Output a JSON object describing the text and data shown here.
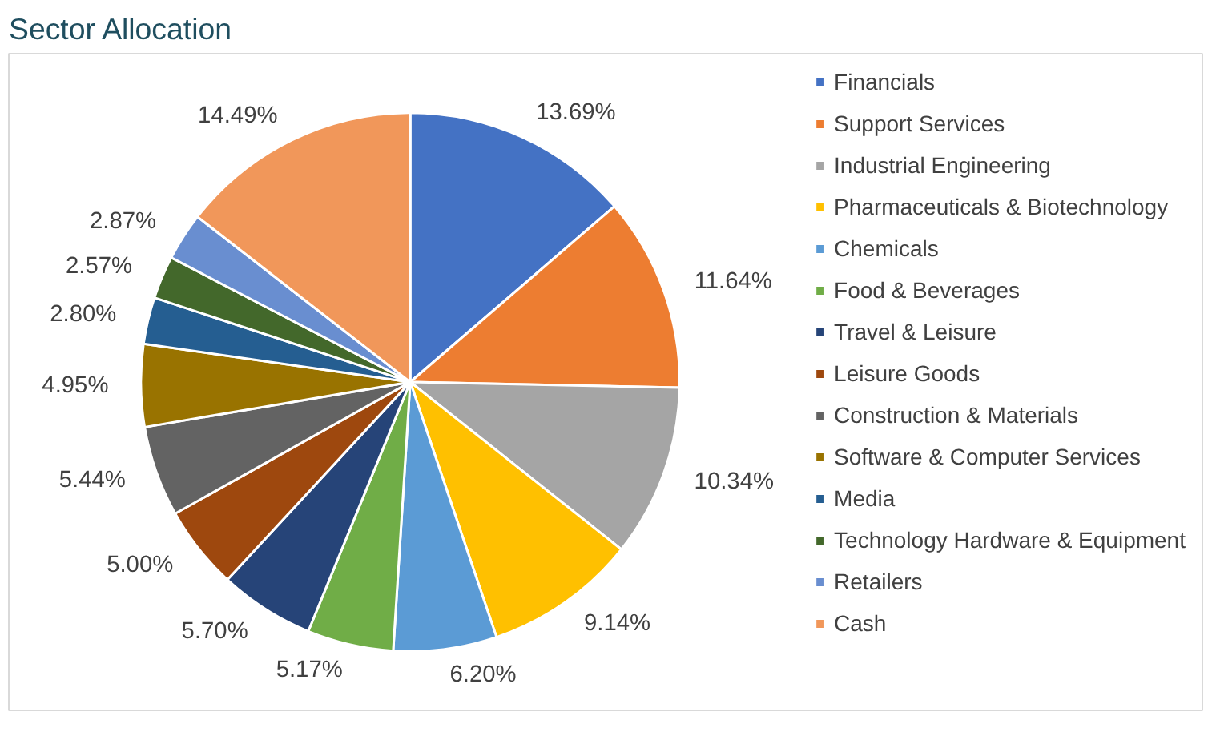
{
  "chart_data": {
    "type": "pie",
    "title": "Sector Allocation",
    "categories": [
      "Financials",
      "Support Services",
      "Industrial Engineering",
      "Pharmaceuticals & Biotechnology",
      "Chemicals",
      "Food & Beverages",
      "Travel & Leisure",
      "Leisure Goods",
      "Construction & Materials",
      "Software & Computer Services",
      "Media",
      "Technology Hardware & Equipment",
      "Retailers",
      "Cash"
    ],
    "values": [
      13.69,
      11.64,
      10.34,
      9.14,
      6.2,
      5.17,
      5.7,
      5.0,
      5.44,
      4.95,
      2.8,
      2.57,
      2.87,
      14.49
    ],
    "value_labels": [
      "13.69%",
      "11.64%",
      "10.34%",
      "9.14%",
      "6.20%",
      "5.17%",
      "5.70%",
      "5.00%",
      "5.44%",
      "4.95%",
      "2.80%",
      "2.57%",
      "2.87%",
      "14.49%"
    ],
    "colors": [
      "#4472c4",
      "#ed7d31",
      "#a5a5a5",
      "#ffc000",
      "#5b9bd5",
      "#70ad47",
      "#264478",
      "#9e480e",
      "#636363",
      "#997300",
      "#255e91",
      "#43682b",
      "#698ed0",
      "#f1975a"
    ],
    "legend": "right"
  }
}
